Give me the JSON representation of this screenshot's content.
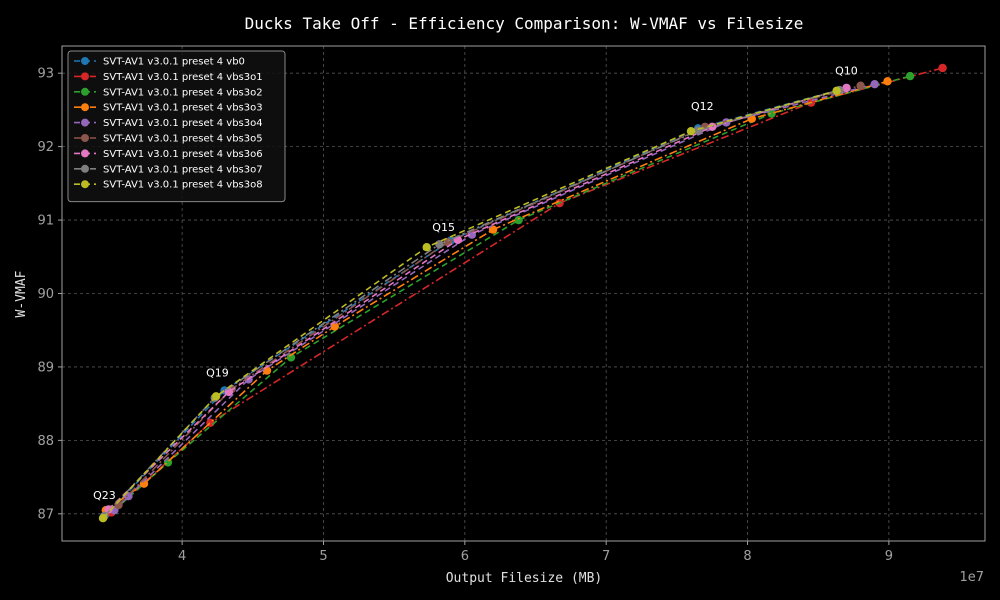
{
  "chart_data": {
    "type": "line",
    "title": "Ducks Take Off - Efficiency Comparison: W-VMAF vs Filesize",
    "xlabel": "Output Filesize (MB)",
    "ylabel": "W-VMAF",
    "x_offset_label": "1e7",
    "xlim": [
      3.15,
      9.68
    ],
    "ylim": [
      86.63,
      93.37
    ],
    "xticks": [
      4,
      5,
      6,
      7,
      8,
      9
    ],
    "yticks": [
      87,
      88,
      89,
      90,
      91,
      92,
      93
    ],
    "grid": true,
    "legend_position": "top-left",
    "annotations": [
      {
        "text": "Q23",
        "x": 3.45,
        "y": 87.2
      },
      {
        "text": "Q19",
        "x": 4.25,
        "y": 88.87
      },
      {
        "text": "Q15",
        "x": 5.85,
        "y": 90.85
      },
      {
        "text": "Q12",
        "x": 7.68,
        "y": 92.5
      },
      {
        "text": "Q10",
        "x": 8.7,
        "y": 92.98
      }
    ],
    "series": [
      {
        "name": "SVT-AV1 v3.0.1 preset 4 vb0",
        "color": "#1f77b4",
        "dash": "6,4",
        "points": [
          [
            3.48,
            87.02
          ],
          [
            4.3,
            88.68
          ],
          [
            5.9,
            90.72
          ],
          [
            7.65,
            92.25
          ],
          [
            8.7,
            92.8
          ]
        ]
      },
      {
        "name": "SVT-AV1 v3.0.1 preset 4 vbs3o1",
        "color": "#d62728",
        "dash": "8,3,2,3",
        "points": [
          [
            3.5,
            87.02
          ],
          [
            4.2,
            88.24
          ],
          [
            6.67,
            91.23
          ],
          [
            8.45,
            92.6
          ],
          [
            9.38,
            93.07
          ]
        ]
      },
      {
        "name": "SVT-AV1 v3.0.1 preset 4 vbs3o2",
        "color": "#2ca02c",
        "dash": "6,4",
        "points": [
          [
            3.52,
            87.05
          ],
          [
            3.9,
            87.7
          ],
          [
            4.77,
            89.13
          ],
          [
            6.38,
            91.0
          ],
          [
            8.17,
            92.45
          ],
          [
            9.15,
            92.96
          ]
        ]
      },
      {
        "name": "SVT-AV1 v3.0.1 preset 4 vbs3o3",
        "color": "#ff7f0e",
        "dash": "8,3,2,3",
        "points": [
          [
            3.46,
            87.05
          ],
          [
            3.73,
            87.41
          ],
          [
            4.6,
            88.95
          ],
          [
            5.08,
            89.55
          ],
          [
            6.2,
            90.87
          ],
          [
            8.03,
            92.38
          ],
          [
            8.99,
            92.89
          ]
        ]
      },
      {
        "name": "SVT-AV1 v3.0.1 preset 4 vbs3o4",
        "color": "#9467bd",
        "dash": "6,4",
        "points": [
          [
            3.52,
            87.05
          ],
          [
            3.62,
            87.24
          ],
          [
            4.47,
            88.83
          ],
          [
            6.05,
            90.8
          ],
          [
            7.85,
            92.33
          ],
          [
            8.9,
            92.85
          ]
        ]
      },
      {
        "name": "SVT-AV1 v3.0.1 preset 4 vbs3o5",
        "color": "#8c564b",
        "dash": "8,3,2,3",
        "points": [
          [
            3.55,
            87.12
          ],
          [
            4.35,
            88.7
          ],
          [
            5.88,
            90.7
          ],
          [
            7.7,
            92.27
          ],
          [
            8.8,
            92.83
          ]
        ]
      },
      {
        "name": "SVT-AV1 v3.0.1 preset 4 vbs3o6",
        "color": "#e377c2",
        "dash": "6,4",
        "points": [
          [
            3.48,
            87.06
          ],
          [
            4.33,
            88.66
          ],
          [
            5.95,
            90.73
          ],
          [
            7.75,
            92.27
          ],
          [
            8.7,
            92.8
          ]
        ]
      },
      {
        "name": "SVT-AV1 v3.0.1 preset 4 vbs3o7",
        "color": "#7f7f7f",
        "dash": "8,3,2,3",
        "points": [
          [
            3.45,
            86.97
          ],
          [
            4.23,
            88.58
          ],
          [
            5.82,
            90.67
          ],
          [
            7.65,
            92.22
          ],
          [
            8.65,
            92.77
          ]
        ]
      },
      {
        "name": "SVT-AV1 v3.0.1 preset 4 vbs3o8",
        "color": "#bcbd22",
        "dash": "6,4",
        "points": [
          [
            3.44,
            86.94
          ],
          [
            4.24,
            88.6
          ],
          [
            5.73,
            90.63
          ],
          [
            7.6,
            92.21
          ],
          [
            8.63,
            92.76
          ]
        ]
      }
    ]
  }
}
